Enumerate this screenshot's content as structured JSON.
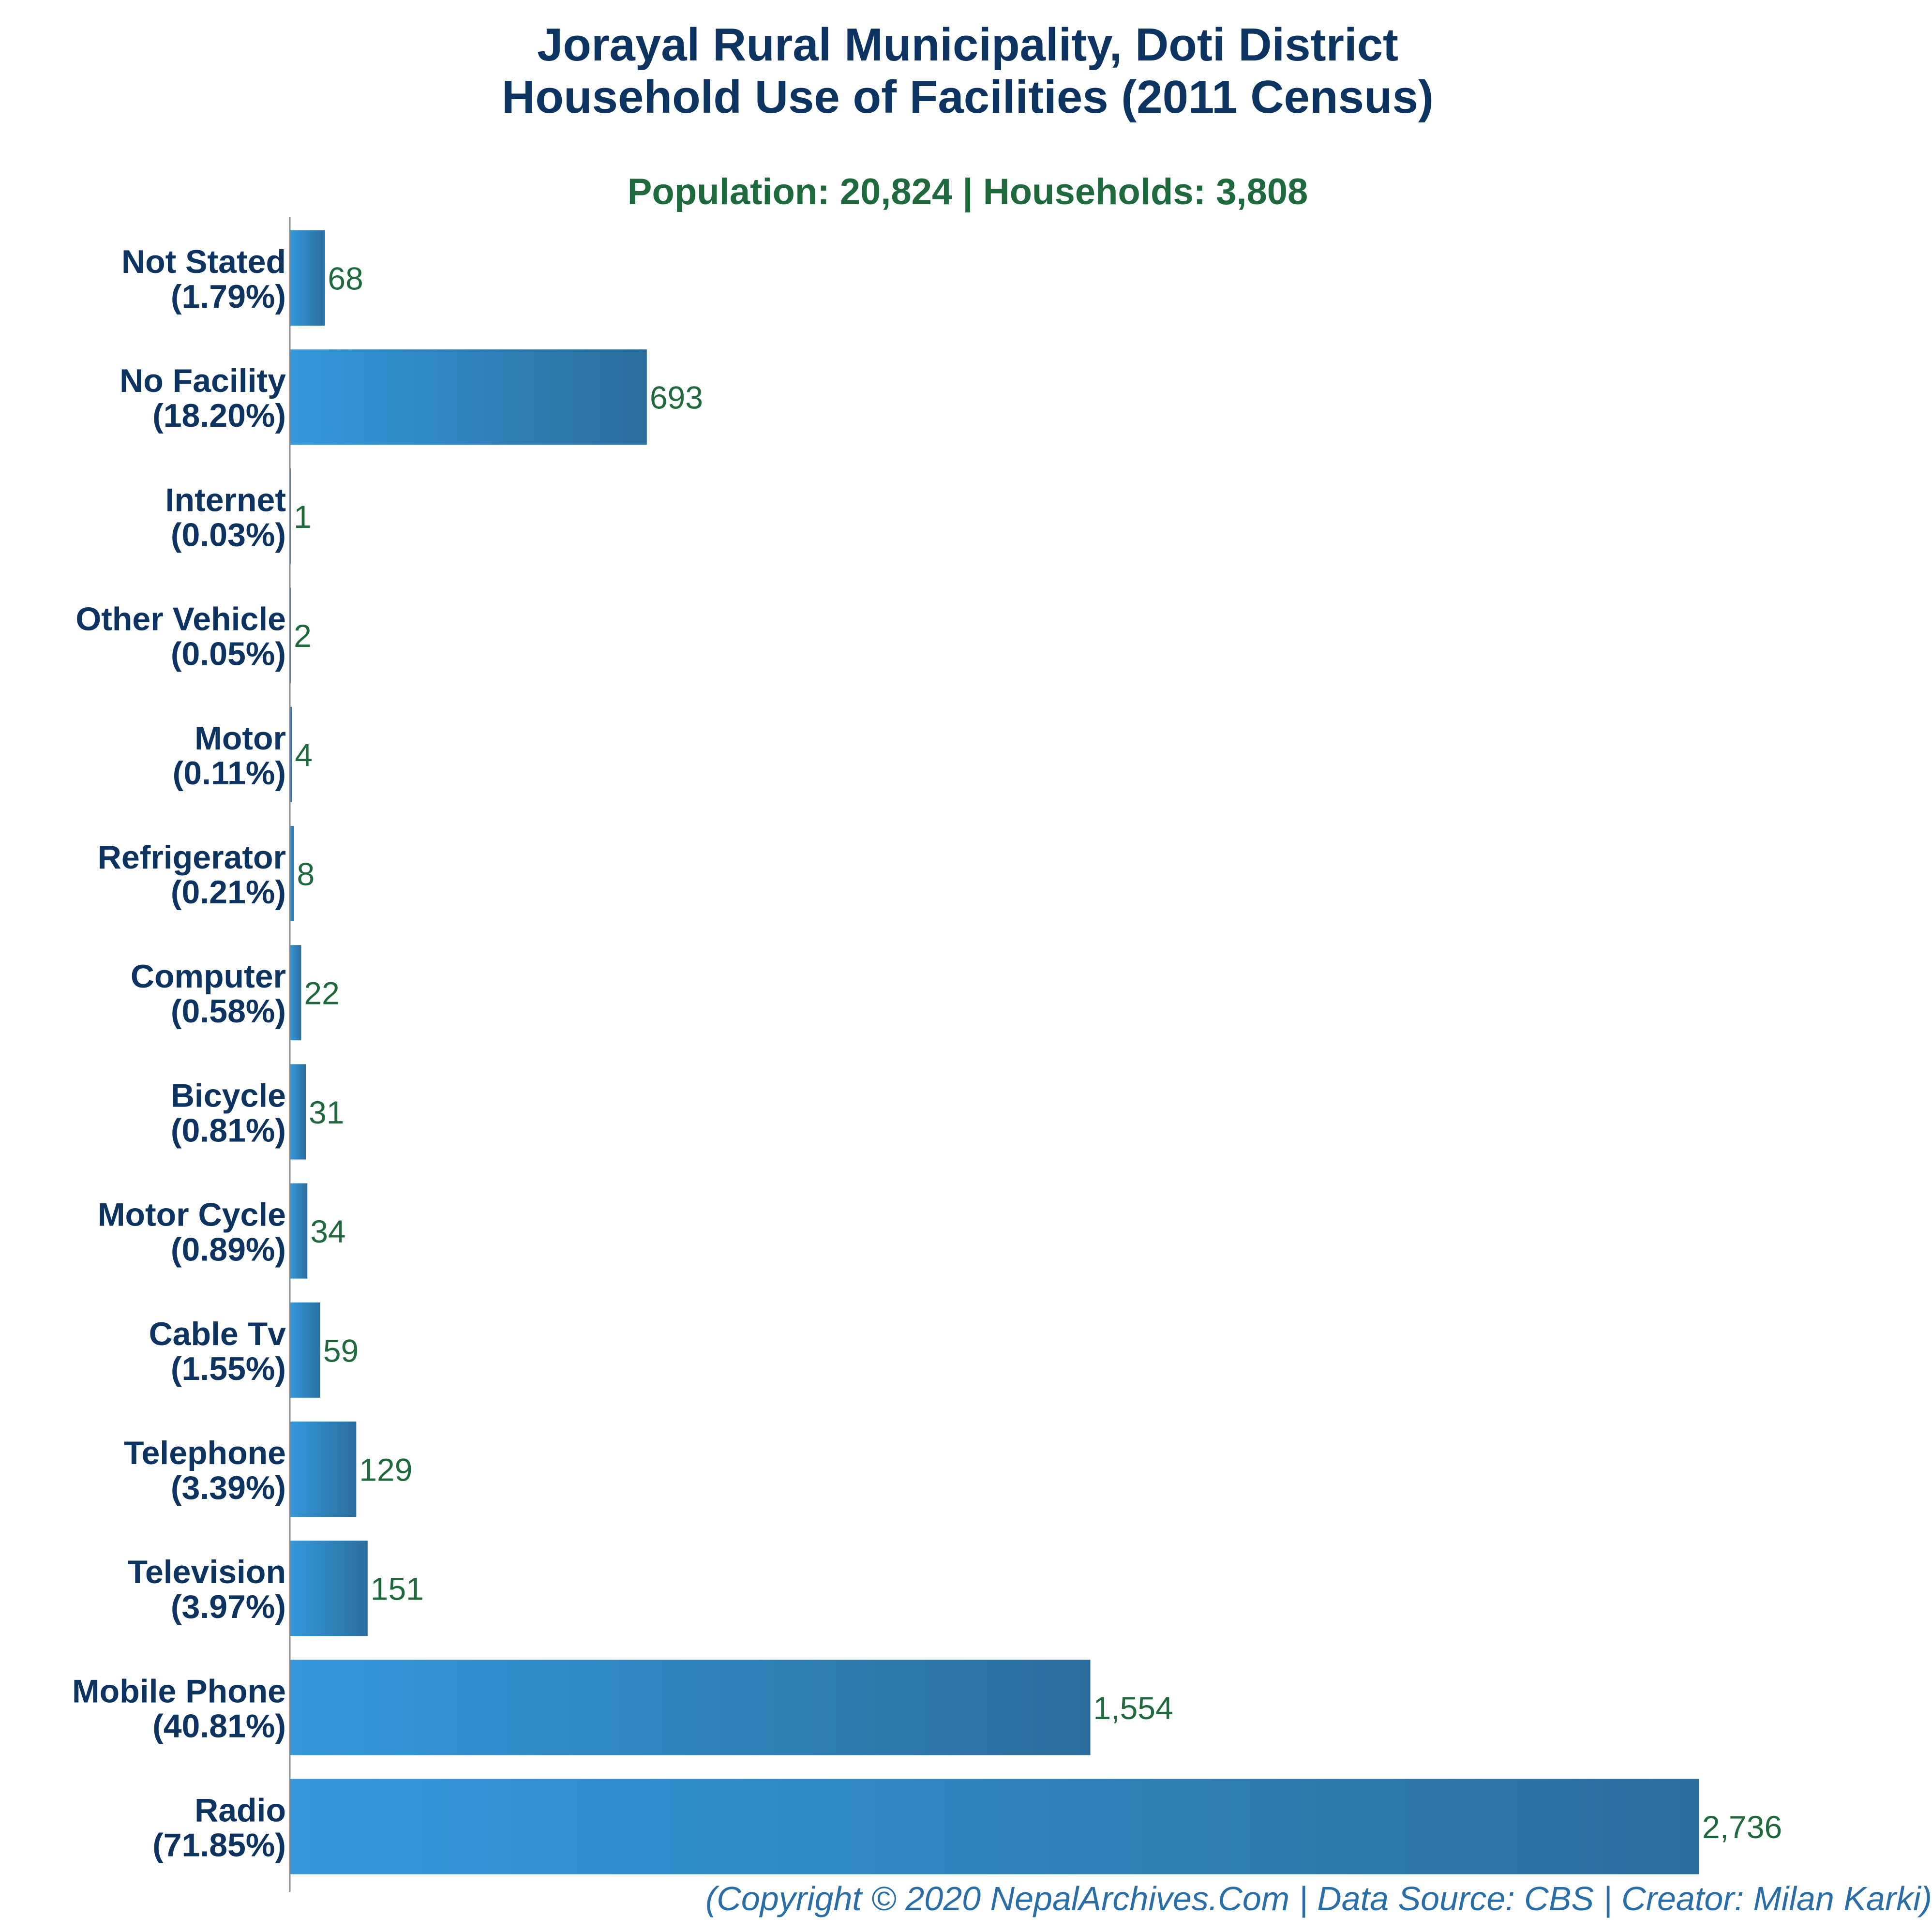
{
  "chart_data": {
    "type": "bar",
    "orientation": "horizontal",
    "title": "Jorayal Rural Municipality, Doti District",
    "title_line2": "Household Use of Facilities (2011 Census)",
    "subtitle": "Population: 20,824 | Households: 3,808",
    "footer": "(Copyright © 2020 NepalArchives.Com | Data Source: CBS | Creator: Milan Karki)",
    "categories": [
      "Not Stated",
      "No Facility",
      "Internet",
      "Other Vehicle",
      "Motor",
      "Refrigerator",
      "Computer",
      "Bicycle",
      "Motor Cycle",
      "Cable Tv",
      "Telephone",
      "Television",
      "Mobile Phone",
      "Radio"
    ],
    "percent_labels": [
      "(1.79%)",
      "(18.20%)",
      "(0.03%)",
      "(0.05%)",
      "(0.11%)",
      "(0.21%)",
      "(0.58%)",
      "(0.81%)",
      "(0.89%)",
      "(1.55%)",
      "(3.39%)",
      "(3.97%)",
      "(40.81%)",
      "(71.85%)"
    ],
    "values": [
      68,
      693,
      1,
      2,
      4,
      8,
      22,
      31,
      34,
      59,
      129,
      151,
      1554,
      2736
    ],
    "value_labels": [
      "68",
      "693",
      "1",
      "2",
      "4",
      "8",
      "22",
      "31",
      "34",
      "59",
      "129",
      "151",
      "1,554",
      "2,736"
    ],
    "xlim": [
      0,
      2736
    ],
    "grid": false,
    "legend": "none",
    "colors": {
      "bar_start": "#3498db",
      "bar_end": "#2a6e9e",
      "axis": "#888888",
      "title": "#0d3461",
      "subtitle": "#1e6a3c",
      "value_text": "#1e6a3c",
      "footer": "#2a6ea8"
    }
  }
}
